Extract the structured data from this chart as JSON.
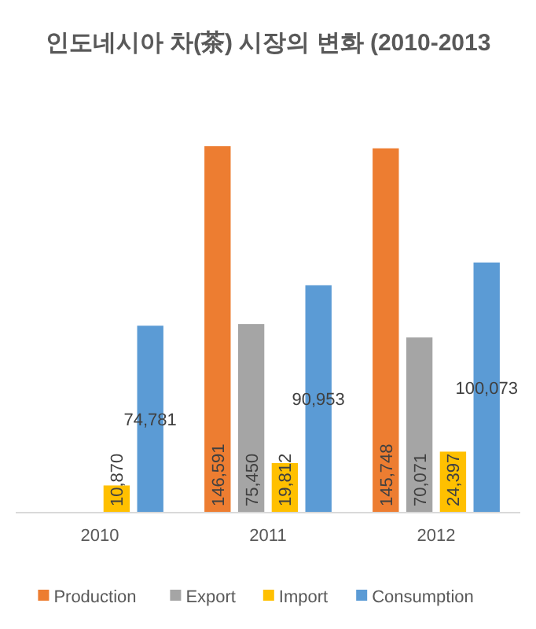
{
  "chart_data": {
    "type": "bar",
    "title": "인도네시아 차(茶) 시장의 변화 (2010-2013",
    "categories": [
      "2010",
      "2011",
      "2012"
    ],
    "series": [
      {
        "name": "Production",
        "color": "#ed7d31",
        "values": [
          null,
          146591,
          145748
        ],
        "value_labels": [
          null,
          "146,591",
          "145,748"
        ]
      },
      {
        "name": "Export",
        "color": "#a5a5a5",
        "values": [
          null,
          75450,
          70071
        ],
        "value_labels": [
          null,
          "75,450",
          "70,071"
        ]
      },
      {
        "name": "Import",
        "color": "#ffc000",
        "values": [
          10870,
          19812,
          24397
        ],
        "value_labels": [
          "10,870",
          "19,812",
          "24,397"
        ]
      },
      {
        "name": "Consumption",
        "color": "#5b9bd5",
        "values": [
          74781,
          90953,
          100073
        ],
        "value_labels": [
          "74,781",
          "90,953",
          "100,073"
        ]
      }
    ],
    "tick_labels": "x",
    "legend": "bottom"
  }
}
